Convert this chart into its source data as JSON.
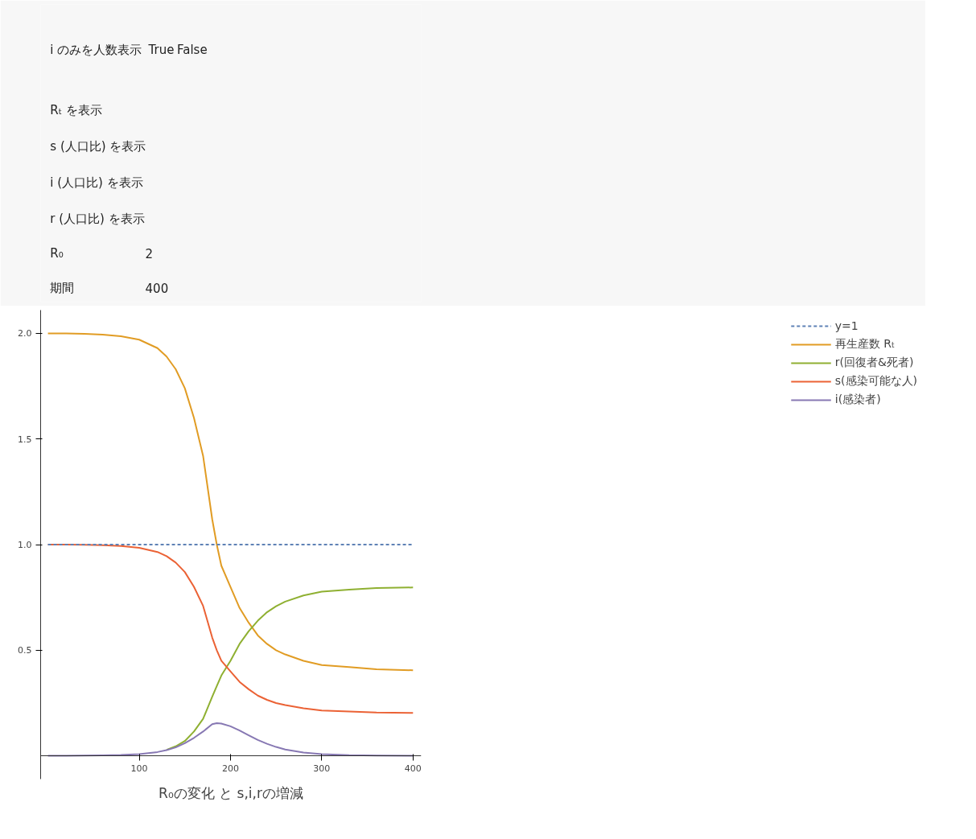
{
  "chart_data": [
    {
      "type": "other",
      "annotations": [
        "i のみを人数表示",
        "True",
        "False",
        "Rₜ を表示",
        "s (人口比) を表示",
        "i (人口比) を表示",
        "r (人口比) を表示",
        "R₀",
        "2",
        "期間",
        "400"
      ]
    },
    {
      "type": "line",
      "title": "R₀の変化 と s,i,rの増減",
      "xlim": [
        -8,
        409
      ],
      "ylim": [
        -0.11,
        2.11
      ],
      "xticks": [
        100,
        200,
        300,
        400
      ],
      "yticks": [
        {
          "value": 0.5,
          "label": "0.5"
        },
        {
          "value": 1,
          "label": "1.0"
        },
        {
          "value": 1.5,
          "label": "1.5"
        },
        {
          "value": 2,
          "label": "2.0"
        }
      ],
      "grid": false,
      "legend": "right",
      "marker": "none",
      "x": [
        0,
        20,
        40,
        60,
        80,
        100,
        120,
        130,
        140,
        150,
        160,
        170,
        180,
        185,
        190,
        200,
        210,
        220,
        230,
        240,
        250,
        260,
        280,
        300,
        330,
        360,
        400
      ],
      "series": [
        {
          "name": "y=1",
          "color": "#5e81b5",
          "line_style": "dashed",
          "x": [
            0,
            400
          ],
          "values": [
            1,
            1
          ]
        },
        {
          "name": "再生産数 Rₜ",
          "color": "#e19c24",
          "values": [
            2.0,
            2.0,
            1.998,
            1.994,
            1.986,
            1.97,
            1.93,
            1.89,
            1.83,
            1.74,
            1.6,
            1.42,
            1.12,
            1.0,
            0.9,
            0.8,
            0.7,
            0.63,
            0.57,
            0.53,
            0.5,
            0.48,
            0.45,
            0.43,
            0.42,
            0.41,
            0.405
          ]
        },
        {
          "name": "r(回復者&死者)",
          "color": "#8fb032",
          "values": [
            null,
            null,
            null,
            null,
            null,
            null,
            null,
            0.028,
            0.045,
            0.07,
            0.115,
            0.175,
            0.28,
            0.33,
            0.38,
            0.45,
            0.53,
            0.59,
            0.64,
            0.68,
            0.708,
            0.73,
            0.759,
            0.777,
            0.787,
            0.794,
            0.797
          ]
        },
        {
          "name": "s(感染可能な人)",
          "color": "#eb6235",
          "values": [
            1.0,
            1.0,
            0.999,
            0.997,
            0.993,
            0.985,
            0.965,
            0.945,
            0.915,
            0.87,
            0.8,
            0.71,
            0.56,
            0.5,
            0.45,
            0.4,
            0.35,
            0.315,
            0.285,
            0.265,
            0.25,
            0.24,
            0.225,
            0.215,
            0.21,
            0.205,
            0.203
          ]
        },
        {
          "name": "i(感染者)",
          "color": "#8778b3",
          "values": [
            0,
            0,
            0.001,
            0.002,
            0.004,
            0.008,
            0.018,
            0.027,
            0.04,
            0.06,
            0.085,
            0.115,
            0.15,
            0.155,
            0.153,
            0.14,
            0.12,
            0.097,
            0.075,
            0.057,
            0.042,
            0.03,
            0.016,
            0.008,
            0.003,
            0.001,
            0
          ]
        }
      ]
    }
  ]
}
